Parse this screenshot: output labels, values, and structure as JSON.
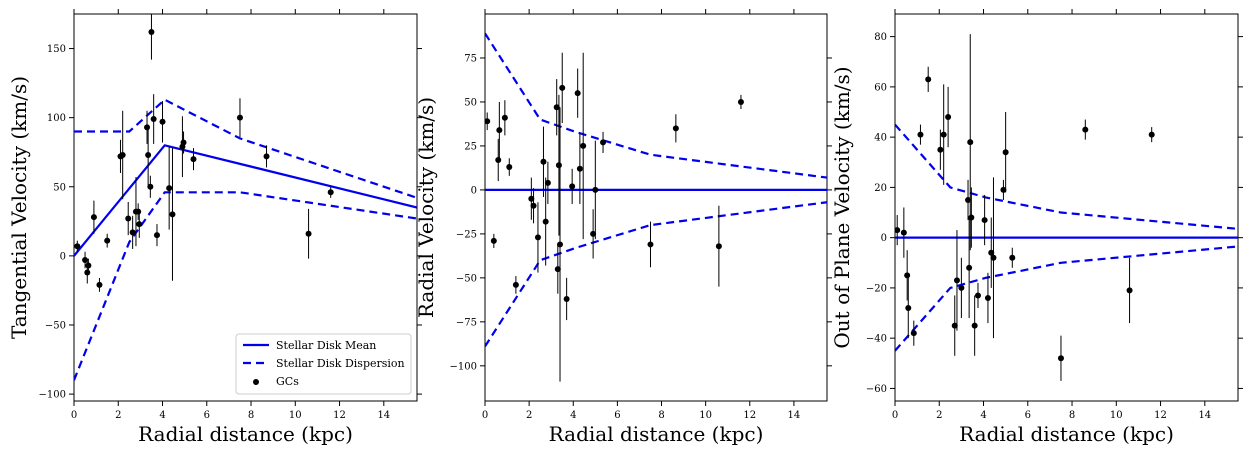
{
  "chart_data": [
    {
      "type": "scatter",
      "xlabel": "Radial distance (kpc)",
      "ylabel": "Tangential Velocity (km/s)",
      "xlim": [
        0,
        15.5
      ],
      "ylim": [
        -105,
        175
      ],
      "xticks": [
        0,
        2,
        4,
        6,
        8,
        10,
        12,
        14
      ],
      "yticks": [
        -100,
        -50,
        0,
        50,
        100,
        150
      ],
      "legend": {
        "placement": "lower right",
        "entries": [
          "Stellar Disk Mean",
          "Stellar Disk Dispersion",
          "GCs"
        ]
      },
      "mean_line": {
        "x": [
          0,
          4.1,
          15.5
        ],
        "y": [
          0,
          80,
          35
        ]
      },
      "dispersion_upper": {
        "x": [
          0,
          2.5,
          4.1,
          7.5,
          15.5
        ],
        "y": [
          90,
          90,
          113,
          85,
          42
        ]
      },
      "dispersion_lower": {
        "x": [
          0,
          2.5,
          4.1,
          7.5,
          15.5
        ],
        "y": [
          -90,
          10,
          46,
          46,
          27
        ]
      },
      "points": [
        {
          "x": 0.15,
          "y": 7,
          "err": 4
        },
        {
          "x": 0.5,
          "y": -3,
          "err": 6
        },
        {
          "x": 0.6,
          "y": -12,
          "err": 8
        },
        {
          "x": 0.65,
          "y": -7,
          "err": 5
        },
        {
          "x": 0.9,
          "y": 28,
          "err": 12
        },
        {
          "x": 1.15,
          "y": -21,
          "err": 5
        },
        {
          "x": 1.5,
          "y": 11,
          "err": 5
        },
        {
          "x": 2.1,
          "y": 72,
          "err": 12
        },
        {
          "x": 2.2,
          "y": 73,
          "err": 32
        },
        {
          "x": 2.45,
          "y": 27,
          "err": 12
        },
        {
          "x": 2.65,
          "y": 17,
          "err": 12
        },
        {
          "x": 2.8,
          "y": 32,
          "err": 25
        },
        {
          "x": 2.9,
          "y": 32,
          "err": 6
        },
        {
          "x": 2.95,
          "y": 23,
          "err": 10
        },
        {
          "x": 3.3,
          "y": 93,
          "err": 12
        },
        {
          "x": 3.35,
          "y": 73,
          "err": 22
        },
        {
          "x": 3.45,
          "y": 50,
          "err": 8
        },
        {
          "x": 3.5,
          "y": 162,
          "err": 20
        },
        {
          "x": 3.6,
          "y": 99,
          "err": 18
        },
        {
          "x": 3.75,
          "y": 15,
          "err": 8
        },
        {
          "x": 4.0,
          "y": 97,
          "err": 15
        },
        {
          "x": 4.3,
          "y": 49,
          "err": 30
        },
        {
          "x": 4.45,
          "y": 30,
          "err": 48
        },
        {
          "x": 4.9,
          "y": 79,
          "err": 22
        },
        {
          "x": 4.95,
          "y": 82,
          "err": 8
        },
        {
          "x": 5.4,
          "y": 70,
          "err": 8
        },
        {
          "x": 7.5,
          "y": 100,
          "err": 14
        },
        {
          "x": 8.7,
          "y": 72,
          "err": 8
        },
        {
          "x": 10.6,
          "y": 16,
          "err": 18
        },
        {
          "x": 11.6,
          "y": 46,
          "err": 4
        }
      ]
    },
    {
      "type": "scatter",
      "xlabel": "Radial distance (kpc)",
      "ylabel": "Radial Velocity (km/s)",
      "xlim": [
        0,
        15.5
      ],
      "ylim": [
        -120,
        100
      ],
      "xticks": [
        0,
        2,
        4,
        6,
        8,
        10,
        12,
        14
      ],
      "yticks": [
        -100,
        -75,
        -50,
        -25,
        0,
        25,
        50,
        75
      ],
      "mean_line": {
        "x": [
          0,
          15.5
        ],
        "y": [
          0,
          0
        ]
      },
      "dispersion_upper": {
        "x": [
          0,
          2.5,
          4.1,
          7.5,
          15.5
        ],
        "y": [
          89,
          40,
          33,
          20,
          7
        ]
      },
      "dispersion_lower": {
        "x": [
          0,
          2.5,
          4.1,
          7.5,
          15.5
        ],
        "y": [
          -89,
          -40,
          -33,
          -20,
          -7
        ]
      },
      "points": [
        {
          "x": 0.1,
          "y": 39,
          "err": 5
        },
        {
          "x": 0.4,
          "y": -29,
          "err": 4
        },
        {
          "x": 0.6,
          "y": 17,
          "err": 12
        },
        {
          "x": 0.65,
          "y": 34,
          "err": 16
        },
        {
          "x": 0.9,
          "y": 41,
          "err": 10
        },
        {
          "x": 1.1,
          "y": 13,
          "err": 5
        },
        {
          "x": 1.4,
          "y": -54,
          "err": 5
        },
        {
          "x": 2.1,
          "y": -5,
          "err": 12
        },
        {
          "x": 2.2,
          "y": -9,
          "err": 10
        },
        {
          "x": 2.4,
          "y": -27,
          "err": 20
        },
        {
          "x": 2.65,
          "y": 16,
          "err": 20
        },
        {
          "x": 2.75,
          "y": -18,
          "err": 25
        },
        {
          "x": 2.85,
          "y": 4,
          "err": 12
        },
        {
          "x": 3.25,
          "y": 47,
          "err": 16
        },
        {
          "x": 3.3,
          "y": -45,
          "err": 14
        },
        {
          "x": 3.35,
          "y": 14,
          "err": 40
        },
        {
          "x": 3.4,
          "y": -31,
          "err": 78
        },
        {
          "x": 3.5,
          "y": 58,
          "err": 20
        },
        {
          "x": 3.7,
          "y": -62,
          "err": 12
        },
        {
          "x": 3.95,
          "y": 2,
          "err": 10
        },
        {
          "x": 4.2,
          "y": 55,
          "err": 14
        },
        {
          "x": 4.3,
          "y": 12,
          "err": 20
        },
        {
          "x": 4.45,
          "y": 25,
          "err": 53
        },
        {
          "x": 4.9,
          "y": -25,
          "err": 14
        },
        {
          "x": 5.0,
          "y": 0,
          "err": 28
        },
        {
          "x": 5.35,
          "y": 27,
          "err": 6
        },
        {
          "x": 7.5,
          "y": -31,
          "err": 13
        },
        {
          "x": 8.65,
          "y": 35,
          "err": 8
        },
        {
          "x": 10.6,
          "y": -32,
          "err": 23
        },
        {
          "x": 11.6,
          "y": 50,
          "err": 4
        }
      ]
    },
    {
      "type": "scatter",
      "xlabel": "Radial distance (kpc)",
      "ylabel": "Out of Plane Velocity (km/s)",
      "xlim": [
        0,
        15.5
      ],
      "ylim": [
        -65,
        89
      ],
      "xticks": [
        0,
        2,
        4,
        6,
        8,
        10,
        12,
        14
      ],
      "yticks": [
        -60,
        -40,
        -20,
        0,
        20,
        40,
        60,
        80
      ],
      "mean_line": {
        "x": [
          0,
          15.5
        ],
        "y": [
          0,
          0
        ]
      },
      "dispersion_upper": {
        "x": [
          0,
          2.5,
          4.1,
          7.5,
          15.5
        ],
        "y": [
          45,
          20,
          16,
          10,
          3.5
        ]
      },
      "dispersion_lower": {
        "x": [
          0,
          2.5,
          4.1,
          7.5,
          15.5
        ],
        "y": [
          -45,
          -20,
          -16,
          -10,
          -3.5
        ]
      },
      "points": [
        {
          "x": 0.1,
          "y": 3,
          "err": 6
        },
        {
          "x": 0.4,
          "y": 2,
          "err": 10
        },
        {
          "x": 0.55,
          "y": -15,
          "err": 10
        },
        {
          "x": 0.6,
          "y": -28,
          "err": 12
        },
        {
          "x": 0.85,
          "y": -38,
          "err": 5
        },
        {
          "x": 1.15,
          "y": 41,
          "err": 4
        },
        {
          "x": 1.5,
          "y": 63,
          "err": 5
        },
        {
          "x": 2.05,
          "y": 35,
          "err": 8
        },
        {
          "x": 2.2,
          "y": 41,
          "err": 20
        },
        {
          "x": 2.4,
          "y": 48,
          "err": 12
        },
        {
          "x": 2.7,
          "y": -35,
          "err": 12
        },
        {
          "x": 2.8,
          "y": -17,
          "err": 20
        },
        {
          "x": 3.0,
          "y": -20,
          "err": 12
        },
        {
          "x": 3.3,
          "y": 15,
          "err": 8
        },
        {
          "x": 3.35,
          "y": -12,
          "err": 20
        },
        {
          "x": 3.4,
          "y": 38,
          "err": 43
        },
        {
          "x": 3.45,
          "y": 8,
          "err": 12
        },
        {
          "x": 3.6,
          "y": -35,
          "err": 12
        },
        {
          "x": 3.75,
          "y": -23,
          "err": 5
        },
        {
          "x": 4.05,
          "y": 7,
          "err": 10
        },
        {
          "x": 4.2,
          "y": -24,
          "err": 10
        },
        {
          "x": 4.35,
          "y": -6,
          "err": 14
        },
        {
          "x": 4.45,
          "y": -8,
          "err": 32
        },
        {
          "x": 4.9,
          "y": 19,
          "err": 4
        },
        {
          "x": 5.0,
          "y": 34,
          "err": 16
        },
        {
          "x": 5.3,
          "y": -8,
          "err": 4
        },
        {
          "x": 7.5,
          "y": -48,
          "err": 9
        },
        {
          "x": 8.6,
          "y": 43,
          "err": 4
        },
        {
          "x": 10.6,
          "y": -21,
          "err": 13
        },
        {
          "x": 11.6,
          "y": 41,
          "err": 3
        }
      ]
    }
  ],
  "style": {
    "line_color": "#0000ee",
    "point_color": "#000000"
  }
}
